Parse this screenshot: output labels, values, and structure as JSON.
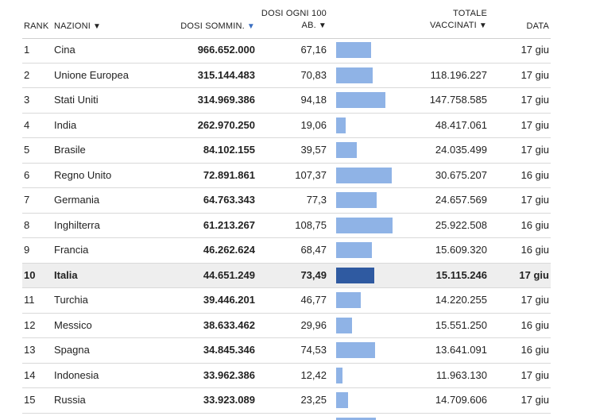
{
  "chart_data": {
    "type": "table",
    "columns": {
      "rank": "RANK",
      "nation": "NAZIONI",
      "dosi": "DOSI SOMMIN.",
      "ogni_line1": "DOSI OGNI 100",
      "ogni_line2": "AB.",
      "vacc_line1": "TOTALE",
      "vacc_line2": "VACCINATI",
      "data": "DATA"
    },
    "sort_arrow": "▼",
    "bar_scale_max": 110,
    "highlight_rank": "10",
    "rows": [
      {
        "rank": "1",
        "nation": "Cina",
        "dosi": "966.652.000",
        "ogni": "67,16",
        "ogni_value": 67.16,
        "vacc": "",
        "data": "17 giu"
      },
      {
        "rank": "2",
        "nation": "Unione Europea",
        "dosi": "315.144.483",
        "ogni": "70,83",
        "ogni_value": 70.83,
        "vacc": "118.196.227",
        "data": "17 giu"
      },
      {
        "rank": "3",
        "nation": "Stati Uniti",
        "dosi": "314.969.386",
        "ogni": "94,18",
        "ogni_value": 94.18,
        "vacc": "147.758.585",
        "data": "17 giu"
      },
      {
        "rank": "4",
        "nation": "India",
        "dosi": "262.970.250",
        "ogni": "19,06",
        "ogni_value": 19.06,
        "vacc": "48.417.061",
        "data": "17 giu"
      },
      {
        "rank": "5",
        "nation": "Brasile",
        "dosi": "84.102.155",
        "ogni": "39,57",
        "ogni_value": 39.57,
        "vacc": "24.035.499",
        "data": "17 giu"
      },
      {
        "rank": "6",
        "nation": "Regno Unito",
        "dosi": "72.891.861",
        "ogni": "107,37",
        "ogni_value": 107.37,
        "vacc": "30.675.207",
        "data": "16 giu"
      },
      {
        "rank": "7",
        "nation": "Germania",
        "dosi": "64.763.343",
        "ogni": "77,3",
        "ogni_value": 77.3,
        "vacc": "24.657.569",
        "data": "17 giu"
      },
      {
        "rank": "8",
        "nation": "Inghilterra",
        "dosi": "61.213.267",
        "ogni": "108,75",
        "ogni_value": 108.75,
        "vacc": "25.922.508",
        "data": "16 giu"
      },
      {
        "rank": "9",
        "nation": "Francia",
        "dosi": "46.262.624",
        "ogni": "68,47",
        "ogni_value": 68.47,
        "vacc": "15.609.320",
        "data": "16 giu"
      },
      {
        "rank": "10",
        "nation": "Italia",
        "dosi": "44.651.249",
        "ogni": "73,49",
        "ogni_value": 73.49,
        "vacc": "15.115.246",
        "data": "17 giu"
      },
      {
        "rank": "11",
        "nation": "Turchia",
        "dosi": "39.446.201",
        "ogni": "46,77",
        "ogni_value": 46.77,
        "vacc": "14.220.255",
        "data": "17 giu"
      },
      {
        "rank": "12",
        "nation": "Messico",
        "dosi": "38.633.462",
        "ogni": "29,96",
        "ogni_value": 29.96,
        "vacc": "15.551.250",
        "data": "16 giu"
      },
      {
        "rank": "13",
        "nation": "Spagna",
        "dosi": "34.845.346",
        "ogni": "74,53",
        "ogni_value": 74.53,
        "vacc": "13.641.091",
        "data": "16 giu"
      },
      {
        "rank": "14",
        "nation": "Indonesia",
        "dosi": "33.962.386",
        "ogni": "12,42",
        "ogni_value": 12.42,
        "vacc": "11.963.130",
        "data": "17 giu"
      },
      {
        "rank": "15",
        "nation": "Russia",
        "dosi": "33.923.089",
        "ogni": "23,25",
        "ogni_value": 23.25,
        "vacc": "14.709.606",
        "data": "17 giu"
      }
    ],
    "partial_row": {
      "ogni_value": 76
    }
  },
  "colors": {
    "bar": "#8fb3e6",
    "bar_highlight": "#2f5aa1",
    "sort_active": "#3b6fc2",
    "highlight_row_bg": "#eeeeee"
  }
}
